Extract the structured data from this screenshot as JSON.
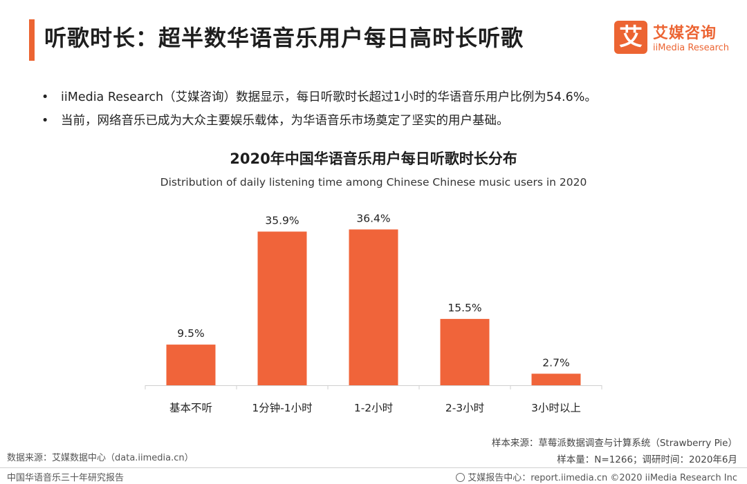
{
  "header": {
    "title": "听歌时长：超半数华语音乐用户每日高时长听歌",
    "logo_mark": "艾",
    "logo_cn": "艾媒咨询",
    "logo_en": "iiMedia Research"
  },
  "bullets": [
    "iiMedia Research（艾媒咨询）数据显示，每日听歌时长超过1小时的华语音乐用户比例为54.6%。",
    "当前，网络音乐已成为大众主要娱乐载体，为华语音乐市场奠定了坚实的用户基础。"
  ],
  "bullet_symbol": "•",
  "chart_data": {
    "type": "bar",
    "title": "2020年中国华语音乐用户每日听歌时长分布",
    "subtitle": "Distribution of daily listening time among Chinese Chinese music users in 2020",
    "categories": [
      "基本不听",
      "1分钟-1小时",
      "1-2小时",
      "2-3小时",
      "3小时以上"
    ],
    "values": [
      9.5,
      35.9,
      36.4,
      15.5,
      2.7
    ],
    "labels": [
      "9.5%",
      "35.9%",
      "36.4%",
      "15.5%",
      "2.7%"
    ],
    "unit": "%",
    "xlabel": "",
    "ylabel": "",
    "ylim": [
      0,
      40
    ],
    "grid": false,
    "color": "#f0643a"
  },
  "footer": {
    "source_left": "数据来源：艾媒数据中心（data.iimedia.cn）",
    "sample_source": "样本来源：草莓派数据调查与计算系统（Strawberry Pie）",
    "sample_size": "样本量：N=1266；调研时间：2020年6月",
    "report_name": "中国华语音乐三十年研究报告",
    "site": "艾媒报告中心：report.iimedia.cn  ©2020  iiMedia Research  Inc"
  }
}
